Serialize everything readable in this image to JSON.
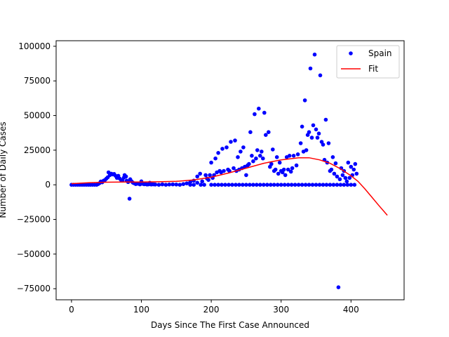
{
  "chart_data": {
    "type": "scatter",
    "xlabel": "Days Since The First Case Announced",
    "ylabel": "Number of Daily Cases",
    "xlim": [
      -22,
      476
    ],
    "ylim": [
      -83000,
      104000
    ],
    "xticks": [
      0,
      100,
      200,
      300,
      400
    ],
    "yticks": [
      -75000,
      -50000,
      -25000,
      0,
      25000,
      50000,
      75000,
      100000
    ],
    "grid": false,
    "legend_position": "top-right",
    "series": [
      {
        "name": "Spain",
        "kind": "scatter",
        "color": "#0000ff",
        "points": [
          [
            0,
            0
          ],
          [
            3,
            0
          ],
          [
            6,
            0
          ],
          [
            9,
            0
          ],
          [
            12,
            0
          ],
          [
            15,
            0
          ],
          [
            18,
            0
          ],
          [
            21,
            0
          ],
          [
            24,
            0
          ],
          [
            27,
            0
          ],
          [
            30,
            0
          ],
          [
            33,
            0
          ],
          [
            36,
            0
          ],
          [
            38,
            500
          ],
          [
            40,
            1200
          ],
          [
            42,
            2400
          ],
          [
            44,
            1800
          ],
          [
            46,
            3000
          ],
          [
            48,
            3500
          ],
          [
            50,
            4500
          ],
          [
            52,
            5500
          ],
          [
            53,
            9000
          ],
          [
            55,
            7000
          ],
          [
            57,
            8000
          ],
          [
            59,
            7500
          ],
          [
            61,
            7800
          ],
          [
            63,
            6500
          ],
          [
            65,
            5000
          ],
          [
            67,
            6500
          ],
          [
            69,
            4500
          ],
          [
            71,
            3500
          ],
          [
            73,
            3000
          ],
          [
            75,
            5200
          ],
          [
            76,
            7000
          ],
          [
            78,
            6000
          ],
          [
            79,
            3000
          ],
          [
            81,
            2000
          ],
          [
            83,
            -10000
          ],
          [
            84,
            4000
          ],
          [
            86,
            2500
          ],
          [
            88,
            1500
          ],
          [
            90,
            1000
          ],
          [
            92,
            500
          ],
          [
            95,
            800
          ],
          [
            98,
            300
          ],
          [
            100,
            2500
          ],
          [
            102,
            700
          ],
          [
            104,
            400
          ],
          [
            106,
            500
          ],
          [
            108,
            200
          ],
          [
            110,
            300
          ],
          [
            112,
            1500
          ],
          [
            114,
            200
          ],
          [
            116,
            400
          ],
          [
            118,
            300
          ],
          [
            120,
            200
          ],
          [
            125,
            0
          ],
          [
            130,
            300
          ],
          [
            135,
            0
          ],
          [
            140,
            200
          ],
          [
            145,
            300
          ],
          [
            150,
            200
          ],
          [
            155,
            0
          ],
          [
            160,
            500
          ],
          [
            165,
            1000
          ],
          [
            170,
            2000
          ],
          [
            170,
            0
          ],
          [
            175,
            3000
          ],
          [
            175,
            0
          ],
          [
            180,
            6000
          ],
          [
            180,
            1500
          ],
          [
            184,
            8000
          ],
          [
            185,
            0
          ],
          [
            187,
            2500
          ],
          [
            190,
            0
          ],
          [
            192,
            7000
          ],
          [
            194,
            4500
          ],
          [
            196,
            3500
          ],
          [
            198,
            7000
          ],
          [
            200,
            16000
          ],
          [
            200,
            0
          ],
          [
            202,
            5000
          ],
          [
            204,
            7000
          ],
          [
            205,
            0
          ],
          [
            206,
            19000
          ],
          [
            208,
            9000
          ],
          [
            210,
            0
          ],
          [
            210,
            23000
          ],
          [
            212,
            10000
          ],
          [
            214,
            9000
          ],
          [
            215,
            0
          ],
          [
            216,
            26000
          ],
          [
            218,
            10000
          ],
          [
            220,
            0
          ],
          [
            222,
            27000
          ],
          [
            224,
            11000
          ],
          [
            225,
            0
          ],
          [
            226,
            10000
          ],
          [
            228,
            31000
          ],
          [
            230,
            0
          ],
          [
            232,
            12000
          ],
          [
            234,
            32000
          ],
          [
            235,
            0
          ],
          [
            236,
            10000
          ],
          [
            238,
            20000
          ],
          [
            240,
            0
          ],
          [
            240,
            11000
          ],
          [
            242,
            24000
          ],
          [
            244,
            12000
          ],
          [
            245,
            0
          ],
          [
            246,
            27000
          ],
          [
            248,
            13000
          ],
          [
            250,
            0
          ],
          [
            250,
            7000
          ],
          [
            252,
            14000
          ],
          [
            254,
            15000
          ],
          [
            255,
            0
          ],
          [
            256,
            38000
          ],
          [
            258,
            21000
          ],
          [
            260,
            0
          ],
          [
            260,
            17000
          ],
          [
            262,
            51000
          ],
          [
            264,
            19000
          ],
          [
            265,
            0
          ],
          [
            266,
            25000
          ],
          [
            268,
            55000
          ],
          [
            270,
            0
          ],
          [
            270,
            21000
          ],
          [
            272,
            24000
          ],
          [
            274,
            19000
          ],
          [
            275,
            0
          ],
          [
            276,
            52000
          ],
          [
            278,
            36000
          ],
          [
            280,
            0
          ],
          [
            282,
            38000
          ],
          [
            284,
            13000
          ],
          [
            285,
            0
          ],
          [
            286,
            15000
          ],
          [
            288,
            25500
          ],
          [
            290,
            0
          ],
          [
            290,
            10000
          ],
          [
            292,
            11000
          ],
          [
            294,
            20000
          ],
          [
            295,
            0
          ],
          [
            296,
            8000
          ],
          [
            298,
            16000
          ],
          [
            300,
            0
          ],
          [
            300,
            10000
          ],
          [
            302,
            9000
          ],
          [
            304,
            11000
          ],
          [
            305,
            0
          ],
          [
            306,
            7000
          ],
          [
            308,
            20000
          ],
          [
            310,
            0
          ],
          [
            310,
            11000
          ],
          [
            312,
            21000
          ],
          [
            314,
            9500
          ],
          [
            315,
            0
          ],
          [
            316,
            12000
          ],
          [
            318,
            21000
          ],
          [
            320,
            0
          ],
          [
            322,
            14000
          ],
          [
            324,
            22000
          ],
          [
            325,
            0
          ],
          [
            328,
            30000
          ],
          [
            330,
            0
          ],
          [
            330,
            42000
          ],
          [
            332,
            24000
          ],
          [
            334,
            61000
          ],
          [
            335,
            0
          ],
          [
            336,
            25000
          ],
          [
            338,
            36000
          ],
          [
            340,
            0
          ],
          [
            340,
            38000
          ],
          [
            342,
            84000
          ],
          [
            344,
            34000
          ],
          [
            345,
            0
          ],
          [
            346,
            43000
          ],
          [
            348,
            94000
          ],
          [
            350,
            0
          ],
          [
            350,
            40000
          ],
          [
            352,
            34000
          ],
          [
            354,
            37000
          ],
          [
            355,
            0
          ],
          [
            356,
            79000
          ],
          [
            358,
            31000
          ],
          [
            360,
            0
          ],
          [
            360,
            29000
          ],
          [
            362,
            18000
          ],
          [
            364,
            47000
          ],
          [
            365,
            0
          ],
          [
            366,
            16000
          ],
          [
            368,
            30000
          ],
          [
            370,
            0
          ],
          [
            370,
            10000
          ],
          [
            372,
            11000
          ],
          [
            374,
            20000
          ],
          [
            375,
            0
          ],
          [
            376,
            8000
          ],
          [
            378,
            15500
          ],
          [
            380,
            0
          ],
          [
            380,
            6000
          ],
          [
            382,
            -74000
          ],
          [
            384,
            4000
          ],
          [
            385,
            0
          ],
          [
            386,
            12000
          ],
          [
            388,
            7000
          ],
          [
            390,
            0
          ],
          [
            390,
            10000
          ],
          [
            392,
            5000
          ],
          [
            394,
            2500
          ],
          [
            395,
            0
          ],
          [
            396,
            16000
          ],
          [
            398,
            5000
          ],
          [
            400,
            0
          ],
          [
            400,
            13000
          ],
          [
            402,
            7000
          ],
          [
            404,
            11000
          ],
          [
            405,
            0
          ],
          [
            406,
            15000
          ],
          [
            408,
            8000
          ]
        ]
      },
      {
        "name": "Fit",
        "kind": "line",
        "color": "#ff0000",
        "points": [
          [
            0,
            800
          ],
          [
            25,
            1500
          ],
          [
            50,
            1900
          ],
          [
            75,
            2000
          ],
          [
            100,
            2000
          ],
          [
            125,
            2200
          ],
          [
            150,
            2500
          ],
          [
            175,
            3500
          ],
          [
            200,
            5500
          ],
          [
            225,
            8500
          ],
          [
            250,
            12000
          ],
          [
            275,
            15500
          ],
          [
            300,
            18000
          ],
          [
            325,
            19500
          ],
          [
            340,
            19500
          ],
          [
            355,
            18000
          ],
          [
            370,
            15500
          ],
          [
            385,
            11500
          ],
          [
            400,
            6500
          ],
          [
            410,
            2500
          ],
          [
            420,
            -3000
          ],
          [
            430,
            -9000
          ],
          [
            440,
            -15000
          ],
          [
            452,
            -22000
          ]
        ]
      }
    ]
  }
}
